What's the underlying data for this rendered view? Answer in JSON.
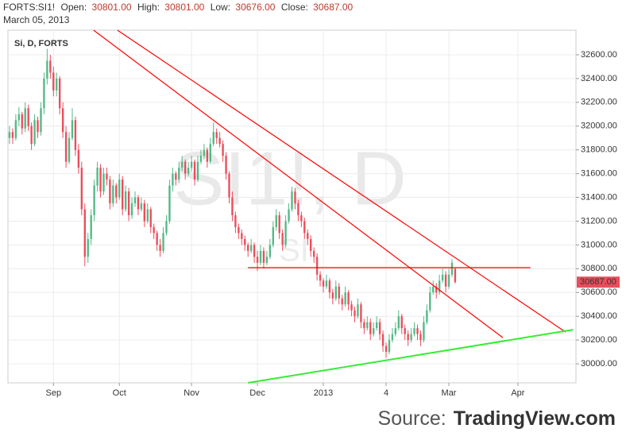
{
  "chart_data": {
    "type": "candlestick",
    "header": {
      "symbol": "FORTS:SI1!",
      "open_label": "Open:",
      "open": "30801.00",
      "high_label": "High:",
      "high": "30801.00",
      "low_label": "Low:",
      "low": "30676.00",
      "close_label": "Close:",
      "close": "30687.00",
      "date": "March 05, 2013"
    },
    "legend": "Si, D, FORTS",
    "watermark": "SI1!, D",
    "watermark_small": "SI",
    "source_label": "Source:",
    "source_name": "TradingView.com",
    "last_label": "30687.00",
    "up_color": "#53b987",
    "down_color": "#eb4d5c",
    "ohlc": [
      [
        31900,
        32000,
        31850,
        31950
      ],
      [
        31950,
        31980,
        31850,
        31900
      ],
      [
        31900,
        32100,
        31880,
        32050
      ],
      [
        32050,
        32160,
        32000,
        32100
      ],
      [
        32100,
        32120,
        31930,
        31980
      ],
      [
        31980,
        32200,
        31950,
        32150
      ],
      [
        32150,
        32180,
        31960,
        32000
      ],
      [
        32000,
        32030,
        31800,
        31850
      ],
      [
        31850,
        32100,
        31830,
        32050
      ],
      [
        32050,
        32080,
        31900,
        31950
      ],
      [
        31950,
        32200,
        31920,
        32150
      ],
      [
        32150,
        32450,
        32100,
        32400
      ],
      [
        32400,
        32650,
        32350,
        32550
      ],
      [
        32550,
        32600,
        32400,
        32450
      ],
      [
        32450,
        32500,
        32250,
        32300
      ],
      [
        32300,
        32450,
        32250,
        32400
      ],
      [
        32400,
        32420,
        32100,
        32150
      ],
      [
        32150,
        32200,
        31900,
        31950
      ],
      [
        31950,
        32000,
        31650,
        31700
      ],
      [
        31700,
        31950,
        31680,
        31900
      ],
      [
        31900,
        32150,
        31880,
        32050
      ],
      [
        32050,
        32080,
        31750,
        31800
      ],
      [
        31800,
        31850,
        31600,
        31650
      ],
      [
        31650,
        31700,
        31250,
        31300
      ],
      [
        31300,
        31350,
        30820,
        30900
      ],
      [
        30900,
        31100,
        30850,
        31050
      ],
      [
        31050,
        31300,
        31000,
        31250
      ],
      [
        31250,
        31550,
        31200,
        31500
      ],
      [
        31500,
        31700,
        31450,
        31650
      ],
      [
        31650,
        31680,
        31400,
        31450
      ],
      [
        31450,
        31650,
        31420,
        31600
      ],
      [
        31600,
        31650,
        31500,
        31550
      ],
      [
        31550,
        31580,
        31300,
        31350
      ],
      [
        31350,
        31550,
        31320,
        31500
      ],
      [
        31500,
        31520,
        31350,
        31400
      ],
      [
        31400,
        31600,
        31380,
        31550
      ],
      [
        31550,
        31580,
        31250,
        31300
      ],
      [
        31300,
        31500,
        31280,
        31450
      ],
      [
        31450,
        31480,
        31200,
        31250
      ],
      [
        31250,
        31400,
        31220,
        31350
      ],
      [
        31350,
        31450,
        31320,
        31400
      ],
      [
        31400,
        31420,
        31250,
        31300
      ],
      [
        31300,
        31400,
        31280,
        31350
      ],
      [
        31350,
        31380,
        31150,
        31200
      ],
      [
        31200,
        31350,
        31180,
        31300
      ],
      [
        31300,
        31320,
        31100,
        31150
      ],
      [
        31150,
        31180,
        31050,
        31100
      ],
      [
        31100,
        31120,
        30950,
        31000
      ],
      [
        31000,
        31050,
        30900,
        30950
      ],
      [
        30950,
        31150,
        30930,
        31100
      ],
      [
        31100,
        31250,
        31080,
        31200
      ],
      [
        31200,
        31550,
        31180,
        31500
      ],
      [
        31500,
        31650,
        31450,
        31600
      ],
      [
        31600,
        31620,
        31500,
        31550
      ],
      [
        31550,
        31700,
        31520,
        31650
      ],
      [
        31650,
        31750,
        31620,
        31700
      ],
      [
        31700,
        31720,
        31550,
        31600
      ],
      [
        31600,
        31700,
        31580,
        31650
      ],
      [
        31650,
        31750,
        31620,
        31700
      ],
      [
        31700,
        31720,
        31500,
        31550
      ],
      [
        31550,
        31750,
        31530,
        31700
      ],
      [
        31700,
        31800,
        31680,
        31750
      ],
      [
        31750,
        31850,
        31720,
        31800
      ],
      [
        31800,
        31820,
        31650,
        31700
      ],
      [
        31700,
        31900,
        31680,
        31850
      ],
      [
        31850,
        32030,
        31830,
        31950
      ],
      [
        31950,
        31980,
        31850,
        31900
      ],
      [
        31900,
        31950,
        31820,
        31850
      ],
      [
        31850,
        31880,
        31700,
        31750
      ],
      [
        31750,
        31780,
        31550,
        31600
      ],
      [
        31600,
        31620,
        31350,
        31400
      ],
      [
        31400,
        31450,
        31200,
        31250
      ],
      [
        31250,
        31280,
        31100,
        31150
      ],
      [
        31150,
        31180,
        31050,
        31100
      ],
      [
        31100,
        31130,
        31000,
        31050
      ],
      [
        31050,
        31080,
        30950,
        31000
      ],
      [
        31000,
        31020,
        30900,
        30950
      ],
      [
        30950,
        31050,
        30930,
        31000
      ],
      [
        31000,
        31020,
        30850,
        30900
      ],
      [
        30900,
        30950,
        30780,
        30850
      ],
      [
        30850,
        31000,
        30830,
        30950
      ],
      [
        30950,
        30980,
        30800,
        30850
      ],
      [
        30850,
        30950,
        30830,
        30900
      ],
      [
        30900,
        31050,
        30880,
        31000
      ],
      [
        31000,
        31200,
        30980,
        31150
      ],
      [
        31150,
        31300,
        31120,
        31250
      ],
      [
        31250,
        31280,
        31050,
        31100
      ],
      [
        31100,
        31130,
        30950,
        31000
      ],
      [
        31000,
        31250,
        30980,
        31200
      ],
      [
        31200,
        31350,
        31180,
        31300
      ],
      [
        31300,
        31490,
        31280,
        31450
      ],
      [
        31450,
        31480,
        31300,
        31350
      ],
      [
        31350,
        31380,
        31200,
        31250
      ],
      [
        31250,
        31280,
        31150,
        31200
      ],
      [
        31200,
        31230,
        31050,
        31100
      ],
      [
        31100,
        31130,
        31000,
        31050
      ],
      [
        31050,
        31080,
        30900,
        30950
      ],
      [
        30950,
        30980,
        30850,
        30900
      ],
      [
        30900,
        30930,
        30700,
        30750
      ],
      [
        30750,
        30780,
        30650,
        30700
      ],
      [
        30700,
        30720,
        30600,
        30650
      ],
      [
        30650,
        30750,
        30630,
        30700
      ],
      [
        30700,
        30720,
        30550,
        30600
      ],
      [
        30600,
        30630,
        30500,
        30550
      ],
      [
        30550,
        30700,
        30530,
        30650
      ],
      [
        30650,
        30680,
        30500,
        30550
      ],
      [
        30550,
        30580,
        30450,
        30500
      ],
      [
        30500,
        30650,
        30480,
        30600
      ],
      [
        30600,
        30620,
        30450,
        30500
      ],
      [
        30500,
        30530,
        30400,
        30450
      ],
      [
        30450,
        30480,
        30350,
        30400
      ],
      [
        30400,
        30550,
        30380,
        30500
      ],
      [
        30500,
        30520,
        30300,
        30350
      ],
      [
        30350,
        30380,
        30250,
        30300
      ],
      [
        30300,
        30400,
        30280,
        30350
      ],
      [
        30350,
        30380,
        30200,
        30250
      ],
      [
        30250,
        30350,
        30230,
        30300
      ],
      [
        30300,
        30400,
        30280,
        30350
      ],
      [
        30350,
        30380,
        30200,
        30250
      ],
      [
        30250,
        30280,
        30100,
        30150
      ],
      [
        30150,
        30180,
        30050,
        30100
      ],
      [
        30100,
        30250,
        30080,
        30200
      ],
      [
        30200,
        30300,
        30180,
        30250
      ],
      [
        30250,
        30350,
        30230,
        30300
      ],
      [
        30300,
        30450,
        30280,
        30400
      ],
      [
        30400,
        30420,
        30250,
        30300
      ],
      [
        30300,
        30330,
        30200,
        30250
      ],
      [
        30250,
        30280,
        30150,
        30200
      ],
      [
        30200,
        30300,
        30180,
        30250
      ],
      [
        30250,
        30350,
        30230,
        30300
      ],
      [
        30300,
        30330,
        30200,
        30250
      ],
      [
        30250,
        30280,
        30150,
        30200
      ],
      [
        30200,
        30400,
        30180,
        30350
      ],
      [
        30350,
        30500,
        30330,
        30450
      ],
      [
        30450,
        30650,
        30430,
        30600
      ],
      [
        30600,
        30700,
        30580,
        30650
      ],
      [
        30650,
        30680,
        30550,
        30600
      ],
      [
        30600,
        30750,
        30580,
        30700
      ],
      [
        30700,
        30800,
        30680,
        30750
      ],
      [
        30750,
        30780,
        30600,
        30650
      ],
      [
        30650,
        30800,
        30630,
        30750
      ],
      [
        30750,
        30880,
        30730,
        30850
      ],
      [
        30801,
        30801,
        30676,
        30687
      ]
    ],
    "trend_lines": [
      {
        "color": "#ff0000",
        "x": [
          26.8,
          157.2
        ],
        "y": [
          32807,
          30220
        ]
      },
      {
        "color": "#ff0000",
        "x": [
          34.4,
          177.2
        ],
        "y": [
          32807,
          30267
        ]
      },
      {
        "color": "#ff0000",
        "x": [
          76,
          166
        ],
        "y": [
          30809,
          30809
        ]
      },
      {
        "color": "#33ee33",
        "x": [
          76,
          179.6
        ],
        "y": [
          29840,
          30287
        ]
      }
    ],
    "xlim": [
      -0.5,
      180.5
    ],
    "xticks": [
      {
        "value": 14,
        "label": "Sep"
      },
      {
        "value": 35,
        "label": "Oct"
      },
      {
        "value": 58,
        "label": "Nov"
      },
      {
        "value": 79,
        "label": "Dec"
      },
      {
        "value": 100,
        "label": "2013"
      },
      {
        "value": 120,
        "label": "4"
      },
      {
        "value": 140,
        "label": "Mar"
      },
      {
        "value": 162,
        "label": "Apr"
      }
    ],
    "ylim": [
      29840,
      32807
    ],
    "yticks": [
      {
        "value": 30000,
        "label": "30000.00"
      },
      {
        "value": 30200,
        "label": "30200.00"
      },
      {
        "value": 30400,
        "label": "30400.00"
      },
      {
        "value": 30600,
        "label": "30600.00"
      },
      {
        "value": 30800,
        "label": "30800.00"
      },
      {
        "value": 31000,
        "label": "31000.00"
      },
      {
        "value": 31200,
        "label": "31200.00"
      },
      {
        "value": 31400,
        "label": "31400.00"
      },
      {
        "value": 31600,
        "label": "31600.00"
      },
      {
        "value": 31800,
        "label": "31800.00"
      },
      {
        "value": 32000,
        "label": "32000.00"
      },
      {
        "value": 32200,
        "label": "32200.00"
      },
      {
        "value": 32400,
        "label": "32400.00"
      },
      {
        "value": 32600,
        "label": "32600.00"
      }
    ],
    "grid": true
  }
}
